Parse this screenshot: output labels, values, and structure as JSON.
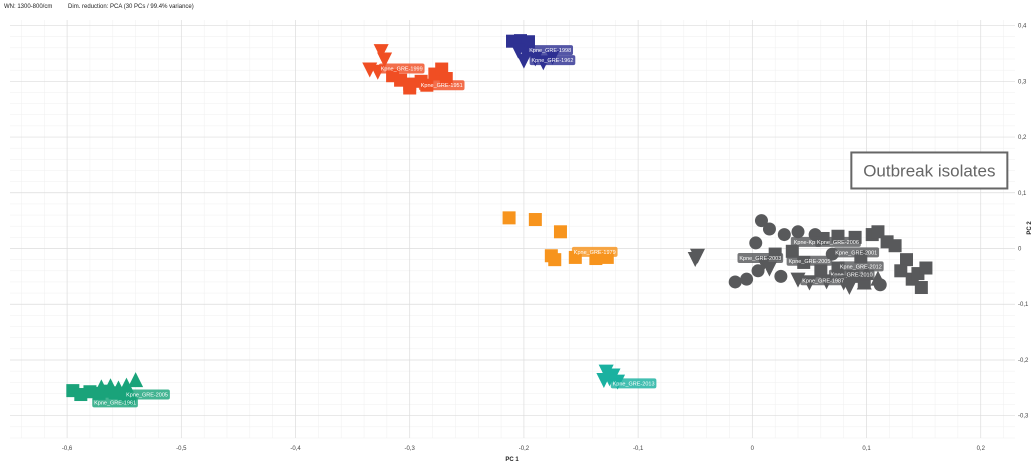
{
  "header": {
    "wavenumber": "WN: 1300-800/cm",
    "reduction": "Dim. reduction: PCA (30 PCs / 99.4% variance)"
  },
  "chart_data": {
    "type": "scatter",
    "title": "",
    "xlabel": "PC 1",
    "ylabel": "PC 2",
    "xlim": [
      -0.65,
      0.23
    ],
    "ylim": [
      -0.34,
      0.41
    ],
    "x_ticks": [
      -0.6,
      -0.5,
      -0.4,
      -0.3,
      -0.2,
      -0.1,
      0,
      0.1,
      0.2
    ],
    "x_tick_labels": [
      "-0,6",
      "-0,5",
      "-0,4",
      "-0,3",
      "-0,2",
      "-0,1",
      "0",
      "0,1",
      "0,2"
    ],
    "y_ticks": [
      -0.3,
      -0.2,
      -0.1,
      0,
      0.1,
      0.2,
      0.3,
      0.4
    ],
    "y_tick_labels": [
      "-0,3",
      "-0,2",
      "-0,1",
      "0",
      "0,1",
      "0,2",
      "0,3",
      "0,4"
    ],
    "grid": true,
    "y_axis_side": "right",
    "colors": {
      "red": "#f04e23",
      "navy": "#2e3192",
      "orange": "#f7941d",
      "teal": "#1ab1a0",
      "green": "#1aa37a",
      "gray": "#58595b"
    },
    "series": [
      {
        "color": "red",
        "points": [
          {
            "x": -0.325,
            "y": 0.355,
            "shape": "triangle-down"
          },
          {
            "x": -0.322,
            "y": 0.34,
            "shape": "triangle-down"
          },
          {
            "x": -0.335,
            "y": 0.322,
            "shape": "triangle-down"
          },
          {
            "x": -0.328,
            "y": 0.318,
            "shape": "triangle-down"
          },
          {
            "x": -0.315,
            "y": 0.31,
            "shape": "square"
          },
          {
            "x": -0.308,
            "y": 0.302,
            "shape": "square"
          },
          {
            "x": -0.3,
            "y": 0.295,
            "shape": "square"
          },
          {
            "x": -0.29,
            "y": 0.3,
            "shape": "square"
          },
          {
            "x": -0.285,
            "y": 0.293,
            "shape": "square"
          },
          {
            "x": -0.278,
            "y": 0.313,
            "shape": "square"
          },
          {
            "x": -0.272,
            "y": 0.322,
            "shape": "square"
          },
          {
            "x": -0.268,
            "y": 0.305,
            "shape": "square"
          },
          {
            "x": -0.3,
            "y": 0.288,
            "shape": "square"
          }
        ]
      },
      {
        "color": "navy",
        "points": [
          {
            "x": -0.21,
            "y": 0.372,
            "shape": "square"
          },
          {
            "x": -0.203,
            "y": 0.373,
            "shape": "square"
          },
          {
            "x": -0.196,
            "y": 0.371,
            "shape": "square"
          },
          {
            "x": -0.205,
            "y": 0.356,
            "shape": "triangle-down"
          },
          {
            "x": -0.198,
            "y": 0.35,
            "shape": "triangle-down"
          },
          {
            "x": -0.2,
            "y": 0.338,
            "shape": "triangle-down"
          },
          {
            "x": -0.19,
            "y": 0.342,
            "shape": "triangle-down"
          },
          {
            "x": -0.183,
            "y": 0.335,
            "shape": "triangle-down"
          },
          {
            "x": -0.175,
            "y": 0.345,
            "shape": "triangle-down"
          }
        ]
      },
      {
        "color": "orange",
        "points": [
          {
            "x": -0.213,
            "y": 0.055,
            "shape": "square"
          },
          {
            "x": -0.19,
            "y": 0.052,
            "shape": "square"
          },
          {
            "x": -0.168,
            "y": 0.03,
            "shape": "square"
          },
          {
            "x": -0.176,
            "y": -0.013,
            "shape": "square"
          },
          {
            "x": -0.173,
            "y": -0.02,
            "shape": "square"
          },
          {
            "x": -0.155,
            "y": -0.016,
            "shape": "square"
          },
          {
            "x": -0.137,
            "y": -0.018,
            "shape": "square"
          },
          {
            "x": -0.127,
            "y": -0.016,
            "shape": "square"
          }
        ]
      },
      {
        "color": "teal",
        "points": [
          {
            "x": -0.128,
            "y": -0.22,
            "shape": "triangle-down"
          },
          {
            "x": -0.125,
            "y": -0.232,
            "shape": "triangle-down"
          },
          {
            "x": -0.122,
            "y": -0.227,
            "shape": "triangle-down"
          },
          {
            "x": -0.118,
            "y": -0.238,
            "shape": "triangle-down"
          },
          {
            "x": -0.13,
            "y": -0.235,
            "shape": "triangle-down"
          }
        ]
      },
      {
        "color": "green",
        "points": [
          {
            "x": -0.595,
            "y": -0.255,
            "shape": "square"
          },
          {
            "x": -0.588,
            "y": -0.262,
            "shape": "square"
          },
          {
            "x": -0.58,
            "y": -0.257,
            "shape": "square"
          },
          {
            "x": -0.572,
            "y": -0.26,
            "shape": "square"
          },
          {
            "x": -0.565,
            "y": -0.256,
            "shape": "square"
          },
          {
            "x": -0.558,
            "y": -0.259,
            "shape": "square"
          },
          {
            "x": -0.55,
            "y": -0.262,
            "shape": "square"
          },
          {
            "x": -0.57,
            "y": -0.25,
            "shape": "triangle-up"
          },
          {
            "x": -0.562,
            "y": -0.248,
            "shape": "triangle-up"
          },
          {
            "x": -0.555,
            "y": -0.252,
            "shape": "triangle-up"
          },
          {
            "x": -0.548,
            "y": -0.247,
            "shape": "triangle-up"
          },
          {
            "x": -0.54,
            "y": -0.237,
            "shape": "triangle-up"
          },
          {
            "x": -0.545,
            "y": -0.27,
            "shape": "circle"
          }
        ]
      },
      {
        "color": "gray",
        "points": [
          {
            "x": -0.048,
            "y": -0.012,
            "shape": "triangle-down"
          },
          {
            "x": -0.05,
            "y": -0.018,
            "shape": "triangle-down"
          },
          {
            "x": 0.008,
            "y": 0.05,
            "shape": "circle"
          },
          {
            "x": 0.015,
            "y": 0.035,
            "shape": "circle"
          },
          {
            "x": 0.003,
            "y": 0.01,
            "shape": "circle"
          },
          {
            "x": 0.028,
            "y": 0.025,
            "shape": "circle"
          },
          {
            "x": 0.04,
            "y": 0.03,
            "shape": "circle"
          },
          {
            "x": 0.055,
            "y": 0.025,
            "shape": "circle"
          },
          {
            "x": 0.062,
            "y": 0.018,
            "shape": "square"
          },
          {
            "x": 0.075,
            "y": 0.022,
            "shape": "square"
          },
          {
            "x": 0.09,
            "y": 0.02,
            "shape": "square"
          },
          {
            "x": 0.105,
            "y": 0.025,
            "shape": "square"
          },
          {
            "x": 0.11,
            "y": 0.03,
            "shape": "square"
          },
          {
            "x": 0.118,
            "y": 0.012,
            "shape": "square"
          },
          {
            "x": 0.125,
            "y": 0.005,
            "shape": "square"
          },
          {
            "x": 0.14,
            "y": -0.055,
            "shape": "square"
          },
          {
            "x": 0.145,
            "y": -0.045,
            "shape": "square"
          },
          {
            "x": 0.148,
            "y": -0.07,
            "shape": "square"
          },
          {
            "x": 0.152,
            "y": -0.035,
            "shape": "square"
          },
          {
            "x": 0.135,
            "y": -0.02,
            "shape": "square"
          },
          {
            "x": 0.13,
            "y": -0.04,
            "shape": "square"
          },
          {
            "x": 0.02,
            "y": -0.01,
            "shape": "square"
          },
          {
            "x": 0.035,
            "y": -0.005,
            "shape": "square"
          },
          {
            "x": 0.045,
            "y": -0.025,
            "shape": "square"
          },
          {
            "x": 0.06,
            "y": -0.04,
            "shape": "square"
          },
          {
            "x": 0.075,
            "y": -0.035,
            "shape": "square"
          },
          {
            "x": 0.088,
            "y": -0.05,
            "shape": "square"
          },
          {
            "x": 0.098,
            "y": -0.058,
            "shape": "square"
          },
          {
            "x": -0.015,
            "y": -0.06,
            "shape": "circle"
          },
          {
            "x": -0.005,
            "y": -0.055,
            "shape": "circle"
          },
          {
            "x": 0.005,
            "y": -0.04,
            "shape": "circle"
          },
          {
            "x": 0.025,
            "y": -0.05,
            "shape": "circle"
          },
          {
            "x": 0.04,
            "y": -0.055,
            "shape": "triangle-down"
          },
          {
            "x": 0.05,
            "y": -0.06,
            "shape": "triangle-down"
          },
          {
            "x": 0.065,
            "y": -0.058,
            "shape": "triangle-down"
          },
          {
            "x": 0.08,
            "y": -0.06,
            "shape": "triangle-down"
          },
          {
            "x": 0.085,
            "y": -0.068,
            "shape": "triangle-down"
          },
          {
            "x": 0.098,
            "y": -0.062,
            "shape": "triangle-up"
          },
          {
            "x": 0.11,
            "y": -0.055,
            "shape": "triangle-up"
          },
          {
            "x": 0.112,
            "y": -0.065,
            "shape": "circle"
          },
          {
            "x": 0.1,
            "y": -0.045,
            "shape": "triangle-up"
          },
          {
            "x": 0.01,
            "y": -0.025,
            "shape": "triangle-down"
          },
          {
            "x": 0.015,
            "y": -0.035,
            "shape": "triangle-down"
          },
          {
            "x": 0.07,
            "y": -0.01,
            "shape": "circle"
          },
          {
            "x": 0.095,
            "y": -0.015,
            "shape": "square"
          }
        ]
      }
    ],
    "labels": [
      {
        "text": "Kpne_GRE-1999",
        "x": -0.307,
        "y": 0.323,
        "color": "red"
      },
      {
        "text": "Kpne_GRE-1951",
        "x": -0.272,
        "y": 0.293,
        "color": "red"
      },
      {
        "text": "Kpne_GRE-1998",
        "x": -0.177,
        "y": 0.356,
        "color": "navy"
      },
      {
        "text": "Kpne_GRE-1962",
        "x": -0.175,
        "y": 0.338,
        "color": "navy"
      },
      {
        "text": "Kpne_GRE-1979",
        "x": -0.138,
        "y": -0.006,
        "color": "orange"
      },
      {
        "text": "Kpne_GRE-2013",
        "x": -0.104,
        "y": -0.242,
        "color": "teal"
      },
      {
        "text": "Kpne_GRE-2005",
        "x": -0.53,
        "y": -0.262,
        "color": "green"
      },
      {
        "text": "Kpne_GRE-1961",
        "x": -0.558,
        "y": -0.276,
        "color": "green"
      },
      {
        "text": "Kpne-Kpn",
        "x": 0.047,
        "y": 0.012,
        "color": "gray"
      },
      {
        "text": "Kpne_GRE-2006",
        "x": 0.075,
        "y": 0.012,
        "color": "gray"
      },
      {
        "text": "Kpne_GRE-2001",
        "x": 0.091,
        "y": -0.007,
        "color": "gray"
      },
      {
        "text": "Kpne_GRE-2003",
        "x": 0.007,
        "y": -0.017,
        "color": "gray"
      },
      {
        "text": "Kpne_GRE-2005",
        "x": 0.05,
        "y": -0.022,
        "color": "gray"
      },
      {
        "text": "Kpne_GRE-2012",
        "x": 0.095,
        "y": -0.032,
        "color": "gray"
      },
      {
        "text": "Kpne_GRE-2010",
        "x": 0.087,
        "y": -0.047,
        "color": "gray"
      },
      {
        "text": "Kpne_GRE-1987",
        "x": 0.062,
        "y": -0.057,
        "color": "gray"
      }
    ],
    "annotations": [
      {
        "text": "Outbreak isolates",
        "x": 0.155,
        "y": 0.14
      }
    ]
  }
}
